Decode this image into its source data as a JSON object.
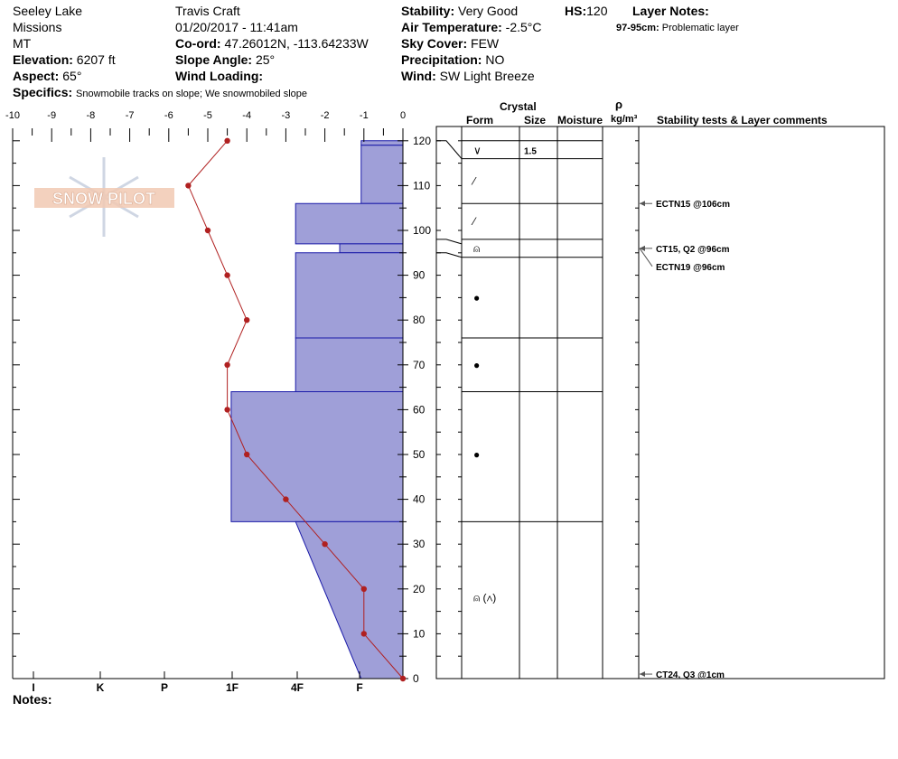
{
  "header": {
    "location_line1": "Seeley Lake",
    "location_line2": "Missions",
    "state": "MT",
    "elevation_label": "Elevation:",
    "elevation_value": "6207 ft",
    "aspect_label": "Aspect:",
    "aspect_value": "65°",
    "specifics_label": "Specifics:",
    "specifics_value": "Snowmobile tracks on slope; We snowmobiled slope",
    "observer": "Travis  Craft",
    "datetime": "01/20/2017 - 11:41am",
    "coord_label": "Co-ord:",
    "coord_value": "47.26012N, -113.64233W",
    "slope_label": "Slope Angle:",
    "slope_value": "25°",
    "wind_loading_label": "Wind Loading:",
    "wind_loading_value": "",
    "stability_label": "Stability:",
    "stability_value": "Very Good",
    "air_temp_label": "Air Temperature:",
    "air_temp_value": "-2.5°C",
    "sky_label": "Sky Cover:",
    "sky_value": "FEW",
    "precip_label": "Precipitation:",
    "precip_value": "NO",
    "wind_label": "Wind:",
    "wind_value": "SW Light Breeze",
    "hs_label": "HS:",
    "hs_value": "120",
    "layer_notes_label": "Layer Notes:",
    "layer_note_range": "97-95cm:",
    "layer_note_text": "Problematic layer"
  },
  "logo": {
    "text": "SNOW PILOT"
  },
  "notes_label": "Notes:",
  "table_headers": {
    "crystal": "Crystal",
    "form": "Form",
    "size": "Size",
    "moisture": "Moisture",
    "rho": "ρ",
    "density_unit": "kg/m³",
    "stability": "Stability tests & Layer comments"
  },
  "colors": {
    "hardness_fill": "#9f9fd8",
    "hardness_stroke": "#1a1aa8",
    "temperature": "#b02020"
  },
  "chart_data": {
    "type": "snow-profile",
    "temperature_axis": {
      "ticks": [
        "-10",
        "-9",
        "-8",
        "-7",
        "-6",
        "-5",
        "-4",
        "-3",
        "-2",
        "-1",
        "0"
      ],
      "range": [
        -10,
        0
      ]
    },
    "height_axis": {
      "ticks": [
        "0",
        "10",
        "20",
        "30",
        "40",
        "50",
        "60",
        "70",
        "80",
        "90",
        "100",
        "110",
        "120"
      ],
      "range": [
        0,
        120
      ],
      "unit": "cm"
    },
    "hardness_axis": {
      "ticks": [
        "I",
        "K",
        "P",
        "1F",
        "4F",
        "F"
      ]
    },
    "hardness_layers": [
      {
        "top": 120,
        "bottom": 119,
        "top_depth": 1.07,
        "bottom_depth": 1.07
      },
      {
        "top": 119,
        "bottom": 106,
        "top_depth": 1.07,
        "bottom_depth": 1.07
      },
      {
        "top": 106,
        "bottom": 97,
        "top_depth": 2.75,
        "bottom_depth": 2.75
      },
      {
        "top": 97,
        "bottom": 95,
        "top_depth": 1.62,
        "bottom_depth": 1.62
      },
      {
        "top": 95,
        "bottom": 76,
        "top_depth": 2.75,
        "bottom_depth": 2.75
      },
      {
        "top": 76,
        "bottom": 64,
        "top_depth": 2.75,
        "bottom_depth": 2.75
      },
      {
        "top": 64,
        "bottom": 35,
        "top_depth": 4.4,
        "bottom_depth": 4.4
      },
      {
        "top": 35,
        "bottom": 0,
        "top_depth": 2.75,
        "bottom_depth": 1.07
      }
    ],
    "temperature_profile": [
      {
        "height": 120,
        "temp": -4.5
      },
      {
        "height": 110,
        "temp": -5.5
      },
      {
        "height": 100,
        "temp": -5.0
      },
      {
        "height": 90,
        "temp": -4.5
      },
      {
        "height": 80,
        "temp": -4.0
      },
      {
        "height": 70,
        "temp": -4.5
      },
      {
        "height": 60,
        "temp": -4.5
      },
      {
        "height": 50,
        "temp": -4.0
      },
      {
        "height": 40,
        "temp": -3.0
      },
      {
        "height": 30,
        "temp": -2.0
      },
      {
        "height": 20,
        "temp": -1.0
      },
      {
        "height": 10,
        "temp": -1.0
      },
      {
        "height": 0,
        "temp": 0.0
      }
    ],
    "layer_boundaries": [
      120,
      116,
      106,
      98,
      94,
      76,
      64,
      35,
      0
    ],
    "crystal_forms": [
      {
        "height": 117.8,
        "form": "∨",
        "size": "1.5"
      },
      {
        "height": 111,
        "form": "⁄",
        "size": ""
      },
      {
        "height": 102,
        "form": "⁄",
        "size": ""
      },
      {
        "height": 96,
        "form": "⍝",
        "size": ""
      },
      {
        "height": 85,
        "form": "●",
        "size": ""
      },
      {
        "height": 70,
        "form": "●",
        "size": ""
      },
      {
        "height": 50,
        "form": "●",
        "size": ""
      },
      {
        "height": 18,
        "form": "⍝ (∧)",
        "size": ""
      }
    ],
    "stability_tests": [
      {
        "height": 106,
        "label": "ECTN15 @106cm"
      },
      {
        "height": 96,
        "label": "CT15, Q2 @96cm"
      },
      {
        "height": 96,
        "label": "ECTN19 @96cm"
      },
      {
        "height": 1,
        "label": "CT24, Q3 @1cm"
      }
    ]
  }
}
